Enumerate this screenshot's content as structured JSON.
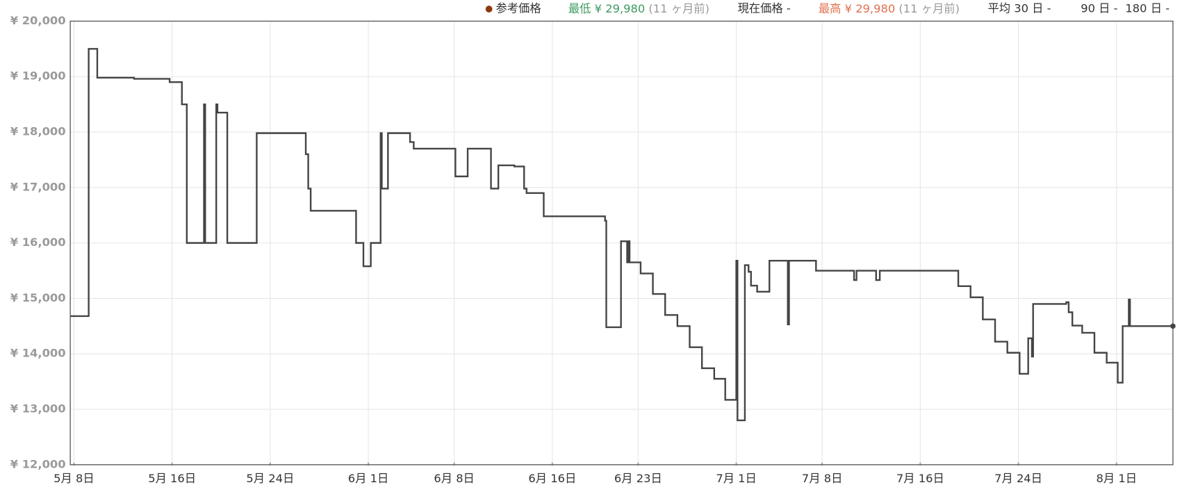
{
  "chart_data": {
    "type": "line",
    "step": "post",
    "legend_bar": {
      "reference": "参考価格",
      "lowest": {
        "label": "最低",
        "price": "¥ 29,980",
        "ago": "(11 ヶ月前)"
      },
      "current": "現在価格 -",
      "highest": {
        "label": "最高",
        "price": "¥ 29,980",
        "ago": "(11 ヶ月前)"
      },
      "averages": [
        "平均 30 日 -",
        "90 日 -",
        "180 日 -"
      ]
    },
    "x": [
      -0.3,
      1.2,
      1.9,
      4.9,
      7.8,
      8.8,
      9.2,
      10.6,
      10.7,
      11.6,
      11.7,
      12.5,
      14.9,
      18.9,
      19.1,
      19.3,
      23.0,
      23.6,
      24.2,
      25.0,
      25.1,
      25.6,
      27.4,
      27.7,
      31.1,
      32.1,
      34.0,
      34.6,
      35.9,
      36.7,
      36.9,
      38.3,
      43.3,
      43.4,
      44.6,
      45.1,
      45.2,
      45.3,
      46.2,
      47.2,
      48.2,
      49.2,
      50.2,
      51.2,
      52.2,
      53.1,
      54.0,
      54.1,
      54.7,
      55.0,
      55.2,
      55.7,
      56.7,
      58.2,
      58.3,
      60.5,
      63.6,
      63.8,
      65.4,
      65.7,
      72.1,
      73.1,
      74.1,
      75.1,
      76.1,
      77.1,
      77.8,
      78.1,
      78.2,
      80.9,
      81.1,
      81.4,
      82.2,
      83.2,
      84.2,
      85.1,
      85.5,
      86.0,
      86.1,
      89.6
    ],
    "series": [
      {
        "color": "#444444",
        "values": [
          14680,
          19500,
          18980,
          18960,
          18900,
          18500,
          16000,
          18500,
          16000,
          18500,
          18350,
          16000,
          17980,
          17600,
          16980,
          16580,
          16000,
          15580,
          16000,
          17980,
          16980,
          17980,
          17820,
          17700,
          17200,
          17700,
          16980,
          17400,
          17380,
          16980,
          16900,
          16480,
          16400,
          14480,
          16030,
          15650,
          16030,
          15650,
          15450,
          15080,
          14700,
          14500,
          14120,
          13740,
          13550,
          13170,
          15680,
          12800,
          15600,
          15480,
          15230,
          15120,
          15680,
          14530,
          15680,
          15500,
          15330,
          15500,
          15330,
          15500,
          15220,
          15020,
          14620,
          14220,
          14020,
          13640,
          14280,
          13950,
          14900,
          14930,
          14750,
          14510,
          14380,
          14020,
          13840,
          13480,
          14500,
          14980,
          14500,
          14500
        ]
      }
    ],
    "xlim": [
      -0.3,
      89.6
    ],
    "xticks": [
      {
        "value": 0,
        "label": "5月 8日"
      },
      {
        "value": 8,
        "label": "5月 16日"
      },
      {
        "value": 16,
        "label": "5月 24日"
      },
      {
        "value": 24,
        "label": "6月 1日"
      },
      {
        "value": 31,
        "label": "6月 8日"
      },
      {
        "value": 39,
        "label": "6月 16日"
      },
      {
        "value": 46,
        "label": "6月 23日"
      },
      {
        "value": 54,
        "label": "7月 1日"
      },
      {
        "value": 61,
        "label": "7月 8日"
      },
      {
        "value": 69,
        "label": "7月 16日"
      },
      {
        "value": 77,
        "label": "7月 24日"
      },
      {
        "value": 85,
        "label": "8月 1日"
      }
    ],
    "ylim": [
      12000,
      20000
    ],
    "yticks": [
      {
        "value": 12000,
        "label": "¥ 12,000"
      },
      {
        "value": 13000,
        "label": "¥ 13,000"
      },
      {
        "value": 14000,
        "label": "¥ 14,000"
      },
      {
        "value": 15000,
        "label": "¥ 15,000"
      },
      {
        "value": 16000,
        "label": "¥ 16,000"
      },
      {
        "value": 17000,
        "label": "¥ 17,000"
      },
      {
        "value": 18000,
        "label": "¥ 18,000"
      },
      {
        "value": 19000,
        "label": "¥ 19,000"
      },
      {
        "value": 20000,
        "label": "¥ 20,000"
      }
    ],
    "grid": true
  }
}
